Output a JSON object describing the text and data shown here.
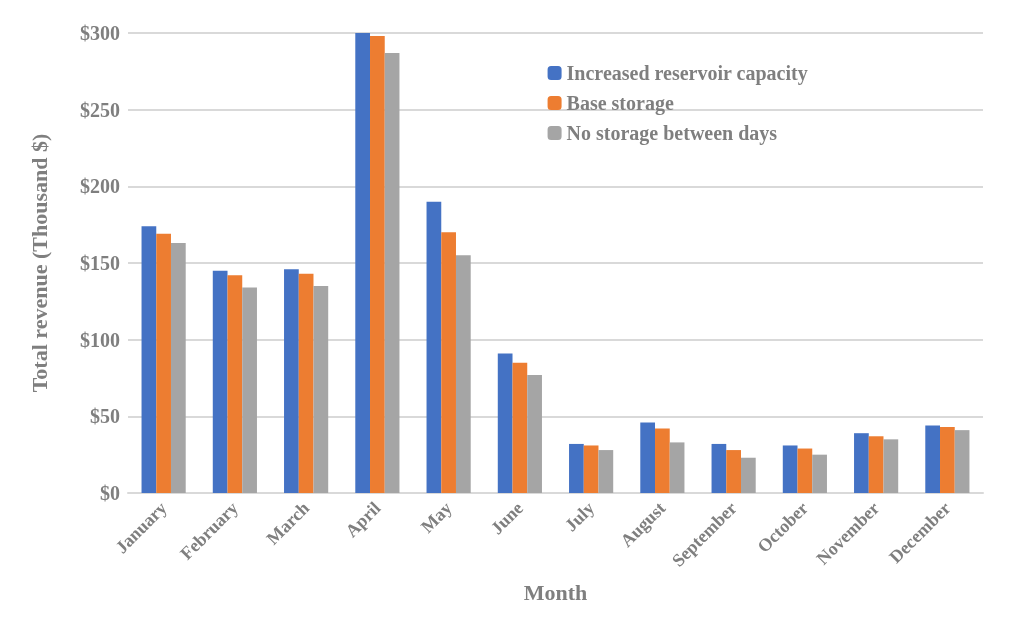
{
  "chart_data": {
    "type": "bar",
    "xlabel": "Month",
    "ylabel": "Total revenue (Thousand $)",
    "categories": [
      "January",
      "February",
      "March",
      "April",
      "May",
      "June",
      "July",
      "August",
      "September",
      "October",
      "November",
      "December"
    ],
    "series": [
      {
        "name": "Increased reservoir capacity",
        "color": "#4472c4",
        "values": [
          174,
          145,
          146,
          300,
          190,
          91,
          32,
          46,
          32,
          31,
          39,
          44
        ]
      },
      {
        "name": "Base storage",
        "color": "#ed7d31",
        "values": [
          169,
          142,
          143,
          298,
          170,
          85,
          31,
          42,
          28,
          29,
          37,
          43
        ]
      },
      {
        "name": "No storage between days",
        "color": "#a5a5a5",
        "values": [
          163,
          134,
          135,
          287,
          155,
          77,
          28,
          33,
          23,
          25,
          35,
          41
        ]
      }
    ],
    "ylim": [
      0,
      300
    ],
    "yticks": [
      {
        "value": 0,
        "label": "$0"
      },
      {
        "value": 50,
        "label": "$50"
      },
      {
        "value": 100,
        "label": "$100"
      },
      {
        "value": 150,
        "label": "$150"
      },
      {
        "value": 200,
        "label": "$200"
      },
      {
        "value": 250,
        "label": "$250"
      },
      {
        "value": 300,
        "label": "$300"
      }
    ],
    "grid": "y",
    "legend": "top right"
  }
}
